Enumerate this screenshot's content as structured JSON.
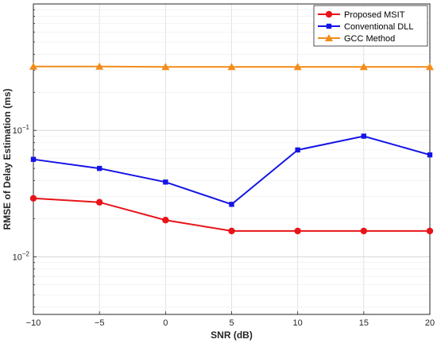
{
  "chart_data": {
    "type": "line",
    "xlabel": "SNR (dB)",
    "ylabel": "RMSE of Delay Estimation (ms)",
    "x": [
      -10,
      -5,
      0,
      5,
      10,
      15,
      20
    ],
    "x_ticks": [
      -10,
      -5,
      0,
      5,
      10,
      15,
      20
    ],
    "x_tick_labels": [
      "−10",
      "−5",
      "0",
      "5",
      "10",
      "15",
      "20"
    ],
    "xlim": [
      -10,
      20
    ],
    "y_scale": "log",
    "ylim": [
      0.0035,
      1.0
    ],
    "y_ticks": [
      0.01,
      0.1
    ],
    "y_tick_labels": [
      {
        "base": "10",
        "exp": "−2"
      },
      {
        "base": "10",
        "exp": "−1"
      }
    ],
    "grid": true,
    "legend_position": "top-right",
    "series": [
      {
        "name": "Proposed MSIT",
        "color": "#e8141a",
        "marker": "circle",
        "values": [
          0.029,
          0.027,
          0.0195,
          0.016,
          0.016,
          0.016,
          0.016
        ]
      },
      {
        "name": "Conventional DLL",
        "color": "#1414e6",
        "marker": "square",
        "values": [
          0.059,
          0.05,
          0.039,
          0.026,
          0.07,
          0.09,
          0.064
        ]
      },
      {
        "name": "GCC Method",
        "color": "#f28c1a",
        "marker": "triangle",
        "values": [
          0.32,
          0.32,
          0.318,
          0.318,
          0.318,
          0.318,
          0.318
        ]
      }
    ]
  }
}
